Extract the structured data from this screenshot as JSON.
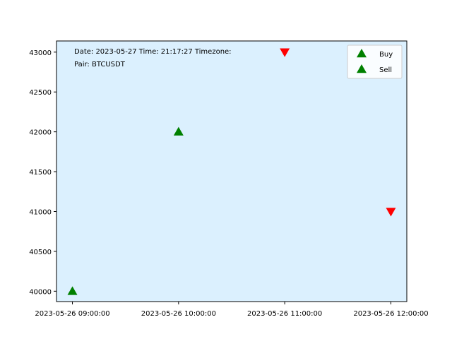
{
  "chart_data": {
    "type": "scatter",
    "x_ticks": [
      "2023-05-26 09:00:00",
      "2023-05-26 10:00:00",
      "2023-05-26 11:00:00",
      "2023-05-26 12:00:00"
    ],
    "y_ticks": [
      "40000",
      "40500",
      "41000",
      "41500",
      "42000",
      "42500",
      "43000"
    ],
    "xlim": [
      "2023-05-26 08:51:00",
      "2023-05-26 12:09:00"
    ],
    "ylim": [
      39870,
      43140
    ],
    "series": [
      {
        "name": "Buy",
        "marker": "triangle-up",
        "color": "#008000",
        "points": [
          {
            "x": "2023-05-26 09:00:00",
            "y": 40000
          },
          {
            "x": "2023-05-26 10:00:00",
            "y": 42000
          }
        ]
      },
      {
        "name": "Sell",
        "marker": "triangle-down",
        "color": "#ff0000",
        "legend_marker": "triangle-up",
        "legend_color": "#008000",
        "points": [
          {
            "x": "2023-05-26 11:00:00",
            "y": 43000
          },
          {
            "x": "2023-05-26 12:00:00",
            "y": 41000
          }
        ]
      }
    ],
    "annotation_lines": [
      "Date: 2023-05-27  Time: 21:17:27  Timezone:",
      "Pair: BTCUSDT"
    ],
    "plot_background": "#dbf0fe",
    "grid": false,
    "legend_placement": "top-right"
  }
}
